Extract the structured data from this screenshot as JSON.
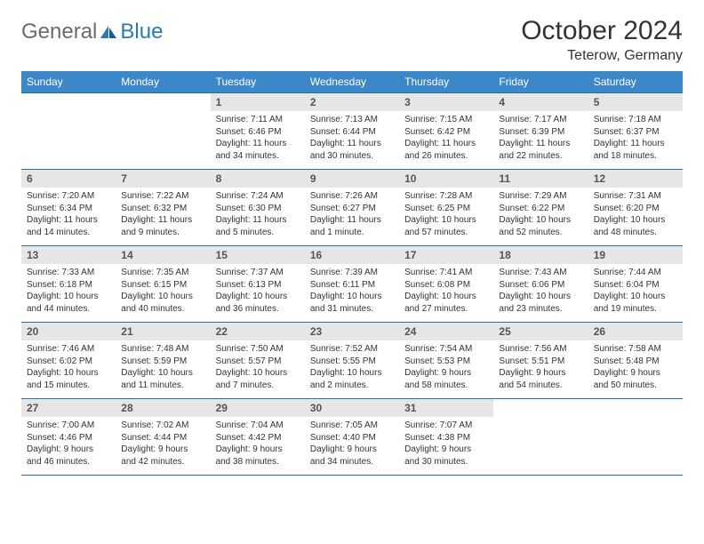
{
  "logo": {
    "general": "General",
    "blue": "Blue"
  },
  "title": "October 2024",
  "subtitle": "Teterow, Germany",
  "colors": {
    "header_bg": "#3b87c8",
    "header_text": "#ffffff",
    "daynum_bg": "#e6e6e6",
    "border": "#2a6fa3",
    "logo_gray": "#6b6b6b",
    "logo_blue": "#2a7ab8"
  },
  "day_headers": [
    "Sunday",
    "Monday",
    "Tuesday",
    "Wednesday",
    "Thursday",
    "Friday",
    "Saturday"
  ],
  "weeks": [
    [
      {
        "n": "",
        "sunrise": "",
        "sunset": "",
        "daylight": ""
      },
      {
        "n": "",
        "sunrise": "",
        "sunset": "",
        "daylight": ""
      },
      {
        "n": "1",
        "sunrise": "Sunrise: 7:11 AM",
        "sunset": "Sunset: 6:46 PM",
        "daylight": "Daylight: 11 hours and 34 minutes."
      },
      {
        "n": "2",
        "sunrise": "Sunrise: 7:13 AM",
        "sunset": "Sunset: 6:44 PM",
        "daylight": "Daylight: 11 hours and 30 minutes."
      },
      {
        "n": "3",
        "sunrise": "Sunrise: 7:15 AM",
        "sunset": "Sunset: 6:42 PM",
        "daylight": "Daylight: 11 hours and 26 minutes."
      },
      {
        "n": "4",
        "sunrise": "Sunrise: 7:17 AM",
        "sunset": "Sunset: 6:39 PM",
        "daylight": "Daylight: 11 hours and 22 minutes."
      },
      {
        "n": "5",
        "sunrise": "Sunrise: 7:18 AM",
        "sunset": "Sunset: 6:37 PM",
        "daylight": "Daylight: 11 hours and 18 minutes."
      }
    ],
    [
      {
        "n": "6",
        "sunrise": "Sunrise: 7:20 AM",
        "sunset": "Sunset: 6:34 PM",
        "daylight": "Daylight: 11 hours and 14 minutes."
      },
      {
        "n": "7",
        "sunrise": "Sunrise: 7:22 AM",
        "sunset": "Sunset: 6:32 PM",
        "daylight": "Daylight: 11 hours and 9 minutes."
      },
      {
        "n": "8",
        "sunrise": "Sunrise: 7:24 AM",
        "sunset": "Sunset: 6:30 PM",
        "daylight": "Daylight: 11 hours and 5 minutes."
      },
      {
        "n": "9",
        "sunrise": "Sunrise: 7:26 AM",
        "sunset": "Sunset: 6:27 PM",
        "daylight": "Daylight: 11 hours and 1 minute."
      },
      {
        "n": "10",
        "sunrise": "Sunrise: 7:28 AM",
        "sunset": "Sunset: 6:25 PM",
        "daylight": "Daylight: 10 hours and 57 minutes."
      },
      {
        "n": "11",
        "sunrise": "Sunrise: 7:29 AM",
        "sunset": "Sunset: 6:22 PM",
        "daylight": "Daylight: 10 hours and 52 minutes."
      },
      {
        "n": "12",
        "sunrise": "Sunrise: 7:31 AM",
        "sunset": "Sunset: 6:20 PM",
        "daylight": "Daylight: 10 hours and 48 minutes."
      }
    ],
    [
      {
        "n": "13",
        "sunrise": "Sunrise: 7:33 AM",
        "sunset": "Sunset: 6:18 PM",
        "daylight": "Daylight: 10 hours and 44 minutes."
      },
      {
        "n": "14",
        "sunrise": "Sunrise: 7:35 AM",
        "sunset": "Sunset: 6:15 PM",
        "daylight": "Daylight: 10 hours and 40 minutes."
      },
      {
        "n": "15",
        "sunrise": "Sunrise: 7:37 AM",
        "sunset": "Sunset: 6:13 PM",
        "daylight": "Daylight: 10 hours and 36 minutes."
      },
      {
        "n": "16",
        "sunrise": "Sunrise: 7:39 AM",
        "sunset": "Sunset: 6:11 PM",
        "daylight": "Daylight: 10 hours and 31 minutes."
      },
      {
        "n": "17",
        "sunrise": "Sunrise: 7:41 AM",
        "sunset": "Sunset: 6:08 PM",
        "daylight": "Daylight: 10 hours and 27 minutes."
      },
      {
        "n": "18",
        "sunrise": "Sunrise: 7:43 AM",
        "sunset": "Sunset: 6:06 PM",
        "daylight": "Daylight: 10 hours and 23 minutes."
      },
      {
        "n": "19",
        "sunrise": "Sunrise: 7:44 AM",
        "sunset": "Sunset: 6:04 PM",
        "daylight": "Daylight: 10 hours and 19 minutes."
      }
    ],
    [
      {
        "n": "20",
        "sunrise": "Sunrise: 7:46 AM",
        "sunset": "Sunset: 6:02 PM",
        "daylight": "Daylight: 10 hours and 15 minutes."
      },
      {
        "n": "21",
        "sunrise": "Sunrise: 7:48 AM",
        "sunset": "Sunset: 5:59 PM",
        "daylight": "Daylight: 10 hours and 11 minutes."
      },
      {
        "n": "22",
        "sunrise": "Sunrise: 7:50 AM",
        "sunset": "Sunset: 5:57 PM",
        "daylight": "Daylight: 10 hours and 7 minutes."
      },
      {
        "n": "23",
        "sunrise": "Sunrise: 7:52 AM",
        "sunset": "Sunset: 5:55 PM",
        "daylight": "Daylight: 10 hours and 2 minutes."
      },
      {
        "n": "24",
        "sunrise": "Sunrise: 7:54 AM",
        "sunset": "Sunset: 5:53 PM",
        "daylight": "Daylight: 9 hours and 58 minutes."
      },
      {
        "n": "25",
        "sunrise": "Sunrise: 7:56 AM",
        "sunset": "Sunset: 5:51 PM",
        "daylight": "Daylight: 9 hours and 54 minutes."
      },
      {
        "n": "26",
        "sunrise": "Sunrise: 7:58 AM",
        "sunset": "Sunset: 5:48 PM",
        "daylight": "Daylight: 9 hours and 50 minutes."
      }
    ],
    [
      {
        "n": "27",
        "sunrise": "Sunrise: 7:00 AM",
        "sunset": "Sunset: 4:46 PM",
        "daylight": "Daylight: 9 hours and 46 minutes."
      },
      {
        "n": "28",
        "sunrise": "Sunrise: 7:02 AM",
        "sunset": "Sunset: 4:44 PM",
        "daylight": "Daylight: 9 hours and 42 minutes."
      },
      {
        "n": "29",
        "sunrise": "Sunrise: 7:04 AM",
        "sunset": "Sunset: 4:42 PM",
        "daylight": "Daylight: 9 hours and 38 minutes."
      },
      {
        "n": "30",
        "sunrise": "Sunrise: 7:05 AM",
        "sunset": "Sunset: 4:40 PM",
        "daylight": "Daylight: 9 hours and 34 minutes."
      },
      {
        "n": "31",
        "sunrise": "Sunrise: 7:07 AM",
        "sunset": "Sunset: 4:38 PM",
        "daylight": "Daylight: 9 hours and 30 minutes."
      },
      {
        "n": "",
        "sunrise": "",
        "sunset": "",
        "daylight": ""
      },
      {
        "n": "",
        "sunrise": "",
        "sunset": "",
        "daylight": ""
      }
    ]
  ]
}
